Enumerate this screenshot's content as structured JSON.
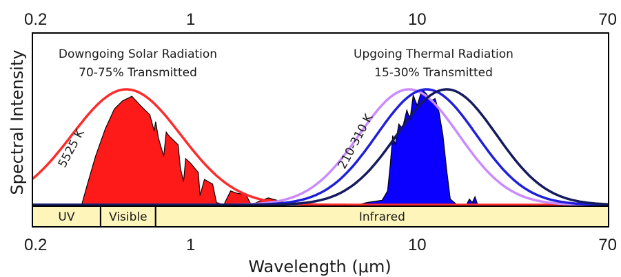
{
  "chart_data": {
    "type": "area",
    "title": "",
    "xlabel": "Wavelength (μm)",
    "ylabel": "Spectral Intensity",
    "xscale": "log",
    "xlim": [
      0.2,
      70
    ],
    "ylim": [
      0,
      1.05
    ],
    "grid": false,
    "tick_labels": [
      "0.2",
      "1",
      "10",
      "70"
    ],
    "tick_values": [
      0.2,
      1,
      10,
      70
    ],
    "annotations": {
      "solar_title": "Downgoing Solar Radiation",
      "solar_sub": "70-75% Transmitted",
      "thermal_title": "Upgoing Thermal Radiation",
      "thermal_sub": "15-30% Transmitted",
      "solar_temp": "5525 K",
      "thermal_temp": "210-310 K"
    },
    "bands": [
      {
        "label": "UV",
        "from": 0.2,
        "to": 0.4
      },
      {
        "label": "Visible",
        "from": 0.4,
        "to": 0.7
      },
      {
        "label": "Infrared",
        "from": 0.7,
        "to": 70
      }
    ],
    "curves": [
      {
        "name": "5525 K",
        "color": "#ff2a2a",
        "peak_x": 0.52,
        "peak_y": 1.0,
        "width": 0.24
      },
      {
        "name": "210 K",
        "color": "#c98bff",
        "peak_x": 9.2,
        "peak_y": 1.0,
        "width": 0.22
      },
      {
        "name": "260 K",
        "color": "#1f1fdc",
        "peak_x": 11.0,
        "peak_y": 1.0,
        "width": 0.22
      },
      {
        "name": "310 K",
        "color": "#141a5e",
        "peak_x": 13.5,
        "peak_y": 1.0,
        "width": 0.22
      }
    ],
    "solar_transmitted": {
      "color": "#ff1a1a",
      "x": [
        0.33,
        0.35,
        0.38,
        0.42,
        0.46,
        0.5,
        0.55,
        0.6,
        0.66,
        0.69,
        0.7,
        0.72,
        0.76,
        0.78,
        0.8,
        0.88,
        0.9,
        0.93,
        0.95,
        1.0,
        1.08,
        1.1,
        1.15,
        1.25,
        1.3,
        1.4,
        1.5,
        1.6,
        1.75,
        1.85,
        2.0,
        2.2,
        2.5,
        2.7,
        3.0
      ],
      "y": [
        0.0,
        0.18,
        0.42,
        0.66,
        0.83,
        0.9,
        0.94,
        0.86,
        0.78,
        0.64,
        0.72,
        0.58,
        0.42,
        0.63,
        0.6,
        0.52,
        0.32,
        0.2,
        0.4,
        0.36,
        0.28,
        0.08,
        0.22,
        0.18,
        0.02,
        0.0,
        0.12,
        0.1,
        0.09,
        0.0,
        0.03,
        0.06,
        0.03,
        0.0,
        0.0
      ]
    },
    "thermal_transmitted": {
      "color": "#0a00ff",
      "x": [
        5.5,
        6.0,
        7.0,
        7.4,
        7.6,
        7.8,
        8.0,
        8.3,
        8.6,
        9.0,
        9.3,
        9.6,
        10.0,
        10.5,
        11.0,
        11.5,
        12.0,
        12.5,
        13.0,
        13.5,
        14.0,
        15.0,
        16.5,
        17.0,
        17.5,
        18.0,
        18.5,
        20.0
      ],
      "y": [
        0.0,
        0.02,
        0.04,
        0.12,
        0.34,
        0.6,
        0.52,
        0.7,
        0.66,
        0.82,
        0.74,
        0.95,
        0.86,
        1.0,
        0.96,
        0.9,
        0.92,
        0.8,
        0.6,
        0.3,
        0.05,
        0.0,
        0.0,
        0.05,
        0.02,
        0.07,
        0.0,
        0.0
      ]
    }
  }
}
